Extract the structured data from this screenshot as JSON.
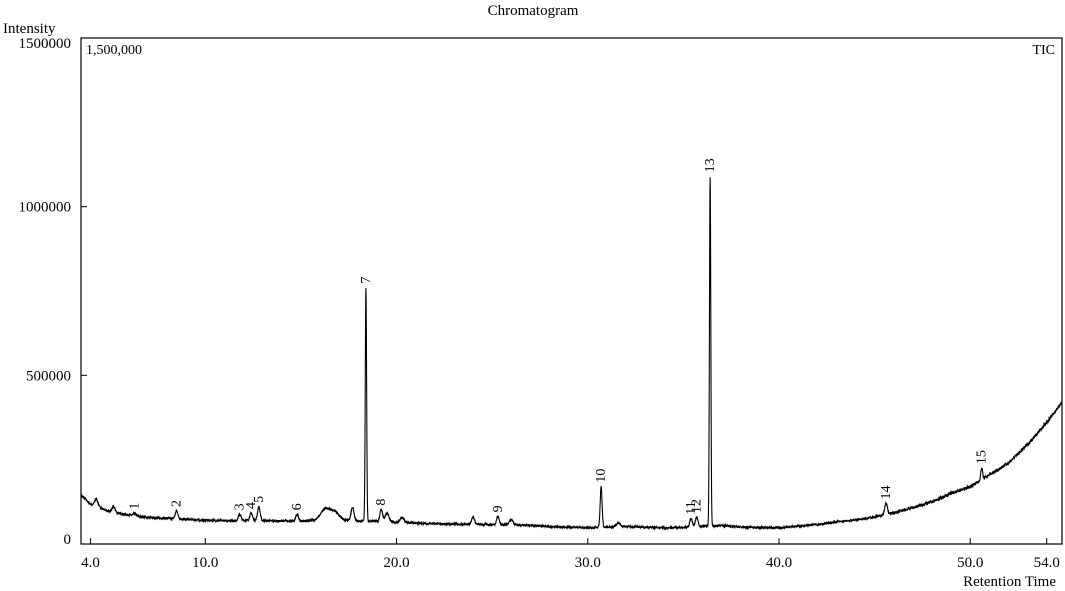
{
  "chart_data": {
    "type": "line",
    "title": "Chromatogram",
    "ylabel": "Intensity",
    "xlabel": "Retention Time",
    "scale_label": "1,500,000",
    "trace_label": "TIC",
    "xlim": [
      3.5,
      54.8
    ],
    "ylim": [
      0,
      1500000
    ],
    "x_ticks": [
      {
        "value": 4.0,
        "label": "4.0"
      },
      {
        "value": 10.0,
        "label": "10.0"
      },
      {
        "value": 20.0,
        "label": "20.0"
      },
      {
        "value": 30.0,
        "label": "30.0"
      },
      {
        "value": 40.0,
        "label": "40.0"
      },
      {
        "value": 50.0,
        "label": "50.0"
      },
      {
        "value": 54.0,
        "label": "54.0"
      }
    ],
    "y_ticks": [
      {
        "value": 0,
        "label": "0"
      },
      {
        "value": 500000,
        "label": "500000"
      },
      {
        "value": 1000000,
        "label": "1000000"
      },
      {
        "value": 1500000,
        "label": "1500000"
      }
    ],
    "peaks": [
      {
        "label": "1",
        "x": 6.3,
        "y": 90000
      },
      {
        "label": "2",
        "x": 8.5,
        "y": 98000
      },
      {
        "label": "3",
        "x": 11.8,
        "y": 88000
      },
      {
        "label": "4",
        "x": 12.4,
        "y": 92000
      },
      {
        "label": "5",
        "x": 12.8,
        "y": 110000
      },
      {
        "label": "6",
        "x": 14.8,
        "y": 88000
      },
      {
        "label": "7",
        "x": 18.4,
        "y": 760000
      },
      {
        "label": "8",
        "x": 19.2,
        "y": 102000
      },
      {
        "label": "9",
        "x": 25.3,
        "y": 82000
      },
      {
        "label": "10",
        "x": 30.7,
        "y": 170000
      },
      {
        "label": "11",
        "x": 35.4,
        "y": 75000
      },
      {
        "label": "12",
        "x": 35.7,
        "y": 80000
      },
      {
        "label": "13",
        "x": 36.4,
        "y": 1090000
      },
      {
        "label": "14",
        "x": 45.6,
        "y": 120000
      },
      {
        "label": "15",
        "x": 50.6,
        "y": 225000
      }
    ],
    "baseline": [
      [
        3.5,
        145000
      ],
      [
        4.0,
        118000
      ],
      [
        4.5,
        108000
      ],
      [
        5.0,
        95000
      ],
      [
        6.0,
        86000
      ],
      [
        7.0,
        78000
      ],
      [
        8.0,
        76000
      ],
      [
        9.0,
        73000
      ],
      [
        10.0,
        70000
      ],
      [
        11.0,
        69000
      ],
      [
        12.0,
        70000
      ],
      [
        13.0,
        69000
      ],
      [
        14.0,
        68000
      ],
      [
        15.0,
        68000
      ],
      [
        16.0,
        70000
      ],
      [
        17.0,
        71000
      ],
      [
        18.0,
        68000
      ],
      [
        19.0,
        67000
      ],
      [
        20.0,
        64000
      ],
      [
        22.0,
        60000
      ],
      [
        24.0,
        58000
      ],
      [
        26.0,
        57000
      ],
      [
        28.0,
        52000
      ],
      [
        30.0,
        48000
      ],
      [
        31.0,
        50000
      ],
      [
        32.0,
        52000
      ],
      [
        34.0,
        48000
      ],
      [
        35.0,
        49000
      ],
      [
        36.0,
        52000
      ],
      [
        37.0,
        55000
      ],
      [
        38.0,
        50000
      ],
      [
        40.0,
        48000
      ],
      [
        42.0,
        58000
      ],
      [
        44.0,
        72000
      ],
      [
        45.0,
        80000
      ],
      [
        46.0,
        92000
      ],
      [
        47.0,
        108000
      ],
      [
        48.0,
        125000
      ],
      [
        49.0,
        150000
      ],
      [
        50.0,
        170000
      ],
      [
        51.0,
        205000
      ],
      [
        52.0,
        240000
      ],
      [
        53.0,
        295000
      ],
      [
        54.0,
        360000
      ],
      [
        54.8,
        420000
      ]
    ],
    "bumps": [
      {
        "x": 16.3,
        "w": 0.25,
        "h": 35000
      },
      {
        "x": 16.8,
        "w": 0.2,
        "h": 22000
      },
      {
        "x": 17.7,
        "w": 0.08,
        "h": 40000
      },
      {
        "x": 19.5,
        "w": 0.1,
        "h": 25000
      },
      {
        "x": 20.3,
        "w": 0.1,
        "h": 15000
      },
      {
        "x": 24.0,
        "w": 0.08,
        "h": 22000
      },
      {
        "x": 26.0,
        "w": 0.1,
        "h": 15000
      },
      {
        "x": 31.6,
        "w": 0.1,
        "h": 12000
      },
      {
        "x": 4.3,
        "w": 0.08,
        "h": 22000
      },
      {
        "x": 5.2,
        "w": 0.08,
        "h": 18000
      }
    ]
  }
}
